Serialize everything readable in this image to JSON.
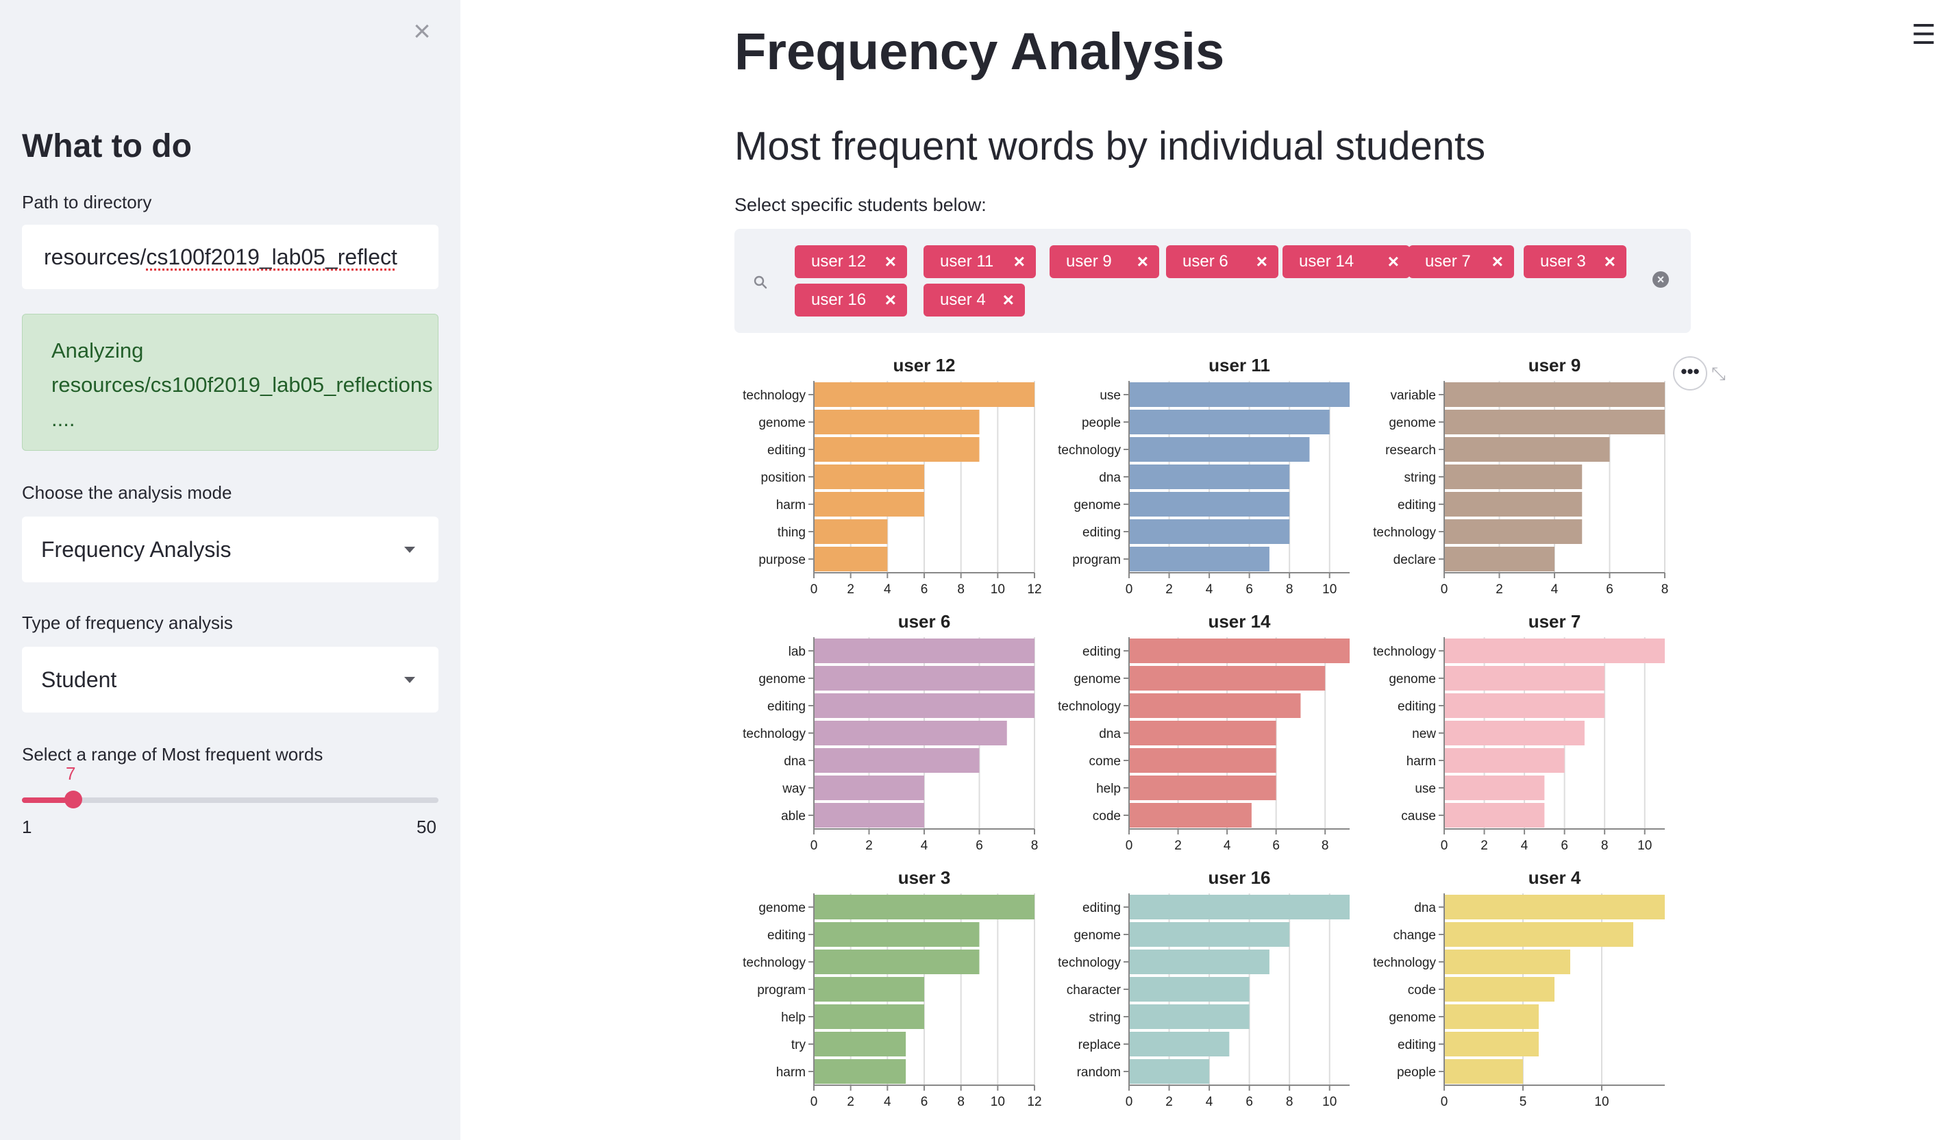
{
  "sidebar": {
    "title": "What to do",
    "path_label": "Path to directory",
    "path_prefix": "resources/",
    "path_rest": "cs100f2019_lab05_reflect",
    "info_line1": "Analyzing",
    "info_line2": "resources/cs100f2019_lab05_reflections",
    "info_line3": "....",
    "mode_label": "Choose the analysis mode",
    "mode_value": "Frequency Analysis",
    "type_label": "Type of frequency analysis",
    "type_value": "Student",
    "slider_label": "Select a range of Most frequent words",
    "slider_value": "7",
    "slider_min": "1",
    "slider_max": "50"
  },
  "main": {
    "title": "Frequency Analysis",
    "subtitle": "Most frequent words by individual students",
    "select_label": "Select specific students below:",
    "chips": [
      "user 12",
      "user 11",
      "user 9",
      "user 6",
      "user 14",
      "user 7",
      "user 3",
      "user 16",
      "user 4"
    ]
  },
  "icons": {
    "close": "close-icon",
    "menu": "hamburger-menu-icon",
    "search": "search-icon",
    "clear": "clear-all-icon",
    "more": "more-actions-icon",
    "chip_remove": "remove-chip-icon"
  },
  "chart_data": [
    {
      "type": "bar",
      "orientation": "horizontal",
      "title": "user 12",
      "color": "#eeaa63",
      "categories": [
        "technology",
        "genome",
        "editing",
        "position",
        "harm",
        "thing",
        "purpose"
      ],
      "values": [
        12,
        9,
        9,
        6,
        6,
        4,
        4
      ],
      "xlim": [
        0,
        12
      ],
      "xticks": [
        0,
        2,
        4,
        6,
        8,
        10,
        12
      ]
    },
    {
      "type": "bar",
      "orientation": "horizontal",
      "title": "user 11",
      "color": "#87a3c6",
      "categories": [
        "use",
        "people",
        "technology",
        "dna",
        "genome",
        "editing",
        "program"
      ],
      "values": [
        11,
        10,
        9,
        8,
        8,
        8,
        7
      ],
      "xlim": [
        0,
        11
      ],
      "xticks": [
        0,
        2,
        4,
        6,
        8,
        10
      ]
    },
    {
      "type": "bar",
      "orientation": "horizontal",
      "title": "user 9",
      "color": "#b9a08f",
      "categories": [
        "variable",
        "genome",
        "research",
        "string",
        "editing",
        "technology",
        "declare"
      ],
      "values": [
        8,
        8,
        6,
        5,
        5,
        5,
        4
      ],
      "xlim": [
        0,
        8
      ],
      "xticks": [
        0,
        2,
        4,
        6,
        8
      ]
    },
    {
      "type": "bar",
      "orientation": "horizontal",
      "title": "user 6",
      "color": "#c8a2c1",
      "categories": [
        "lab",
        "genome",
        "editing",
        "technology",
        "dna",
        "way",
        "able"
      ],
      "values": [
        8,
        8,
        8,
        7,
        6,
        4,
        4
      ],
      "xlim": [
        0,
        8
      ],
      "xticks": [
        0,
        2,
        4,
        6,
        8
      ]
    },
    {
      "type": "bar",
      "orientation": "horizontal",
      "title": "user 14",
      "color": "#e08886",
      "categories": [
        "editing",
        "genome",
        "technology",
        "dna",
        "come",
        "help",
        "code"
      ],
      "values": [
        9,
        8,
        7,
        6,
        6,
        6,
        5
      ],
      "xlim": [
        0,
        9
      ],
      "xticks": [
        0,
        2,
        4,
        6,
        8
      ]
    },
    {
      "type": "bar",
      "orientation": "horizontal",
      "title": "user 7",
      "color": "#f5bcc4",
      "categories": [
        "technology",
        "genome",
        "editing",
        "new",
        "harm",
        "use",
        "cause"
      ],
      "values": [
        11,
        8,
        8,
        7,
        6,
        5,
        5
      ],
      "xlim": [
        0,
        11
      ],
      "xticks": [
        0,
        2,
        4,
        6,
        8,
        10
      ]
    },
    {
      "type": "bar",
      "orientation": "horizontal",
      "title": "user 3",
      "color": "#94bb82",
      "categories": [
        "genome",
        "editing",
        "technology",
        "program",
        "help",
        "try",
        "harm"
      ],
      "values": [
        12,
        9,
        9,
        6,
        6,
        5,
        5
      ],
      "xlim": [
        0,
        12
      ],
      "xticks": [
        0,
        2,
        4,
        6,
        8,
        10,
        12
      ]
    },
    {
      "type": "bar",
      "orientation": "horizontal",
      "title": "user 16",
      "color": "#a8cdca",
      "categories": [
        "editing",
        "genome",
        "technology",
        "character",
        "string",
        "replace",
        "random"
      ],
      "values": [
        11,
        8,
        7,
        6,
        6,
        5,
        4
      ],
      "xlim": [
        0,
        11
      ],
      "xticks": [
        0,
        2,
        4,
        6,
        8,
        10
      ]
    },
    {
      "type": "bar",
      "orientation": "horizontal",
      "title": "user 4",
      "color": "#edd87e",
      "categories": [
        "dna",
        "change",
        "technology",
        "code",
        "genome",
        "editing",
        "people"
      ],
      "values": [
        14,
        12,
        8,
        7,
        6,
        6,
        5
      ],
      "xlim": [
        0,
        14
      ],
      "xticks": [
        0,
        5,
        10
      ]
    }
  ]
}
